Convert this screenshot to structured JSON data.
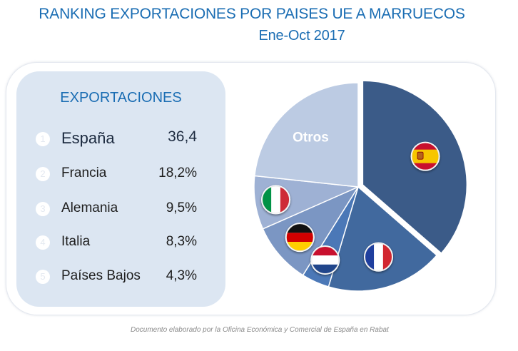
{
  "header": {
    "title": "RANKING EXPORTACIONES POR PAISES UE A MARRUECOS",
    "subtitle": "Ene-Oct 2017"
  },
  "panel": {
    "title": "EXPORTACIONES",
    "items": [
      {
        "rank": "1",
        "country": "España",
        "value": "36,4"
      },
      {
        "rank": "2",
        "country": "Francia",
        "value": "18,2%"
      },
      {
        "rank": "3",
        "country": "Alemania",
        "value": "9,5%"
      },
      {
        "rank": "4",
        "country": "Italia",
        "value": "8,3%"
      },
      {
        "rank": "5",
        "country": "Países Bajos",
        "value": "4,3%"
      }
    ]
  },
  "footer": "Documento elaborado por la Oficina Económica y Comercial de España en Rabat",
  "chart_data": {
    "type": "pie",
    "title": "RANKING EXPORTACIONES POR PAISES UE A MARRUECOS",
    "subtitle": "Ene-Oct 2017",
    "start_angle_deg": 0,
    "slices": [
      {
        "label": "",
        "flag": "spain-flag-icon",
        "value": 36.4,
        "color": "#3b5b88",
        "exploded": true
      },
      {
        "label": "",
        "flag": "france-flag-icon",
        "value": 18.2,
        "color": "#41699e",
        "exploded": false
      },
      {
        "label": "",
        "flag": "netherlands-flag-icon",
        "value": 4.3,
        "color": "#4b78b7",
        "exploded": false
      },
      {
        "label": "",
        "flag": "germany-flag-icon",
        "value": 9.5,
        "color": "#7b96c3",
        "exploded": false
      },
      {
        "label": "",
        "flag": "italy-flag-icon",
        "value": 8.3,
        "color": "#9eb1d4",
        "exploded": false
      },
      {
        "label": "Otros",
        "flag": "",
        "value": 23.3,
        "color": "#bccbe3",
        "exploded": false
      }
    ]
  }
}
